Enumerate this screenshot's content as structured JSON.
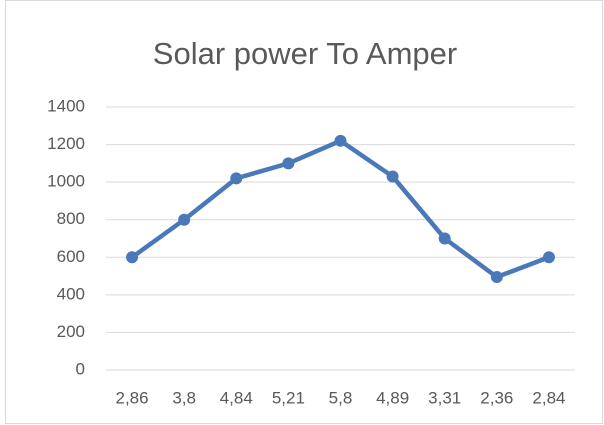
{
  "chart_data": {
    "type": "line",
    "title": "Solar power To Amper",
    "categories": [
      "2,86",
      "3,8",
      "4,84",
      "5,21",
      "5,8",
      "4,89",
      "3,31",
      "2,36",
      "2,84"
    ],
    "values": [
      600,
      800,
      1020,
      1100,
      1220,
      1030,
      700,
      495,
      600
    ],
    "color": "#4a78b8",
    "ylim": [
      0,
      1400
    ],
    "yticks": [
      0,
      200,
      400,
      600,
      800,
      1000,
      1200,
      1400
    ],
    "grid": true
  }
}
